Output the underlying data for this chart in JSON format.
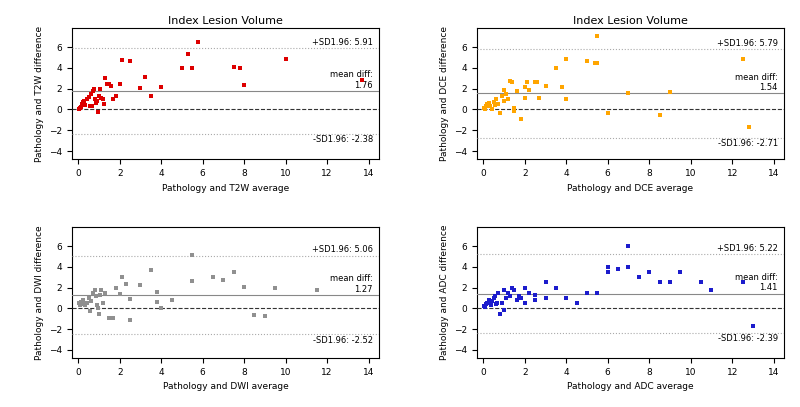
{
  "title": "Index Lesion Volume",
  "plots": [
    {
      "color": "#dd0000",
      "xlabel": "Pathology and T2W average",
      "ylabel": "Pathology and T2W difference",
      "mean": 1.76,
      "upper": 5.91,
      "lower": -2.38,
      "x": [
        0.05,
        0.1,
        0.15,
        0.2,
        0.25,
        0.3,
        0.35,
        0.4,
        0.5,
        0.55,
        0.6,
        0.65,
        0.7,
        0.75,
        0.8,
        0.85,
        0.9,
        0.95,
        1.0,
        1.05,
        1.1,
        1.2,
        1.25,
        1.3,
        1.4,
        1.5,
        1.6,
        1.7,
        1.8,
        2.0,
        2.1,
        2.5,
        3.0,
        3.2,
        3.5,
        4.0,
        5.0,
        5.3,
        5.5,
        5.8,
        7.5,
        7.8,
        8.0,
        10.0,
        13.7
      ],
      "y": [
        0.05,
        0.1,
        0.2,
        0.5,
        0.7,
        0.8,
        0.4,
        1.0,
        1.2,
        0.3,
        1.5,
        0.3,
        1.8,
        2.0,
        1.0,
        0.6,
        0.8,
        -0.2,
        1.3,
        2.0,
        1.1,
        1.0,
        0.5,
        3.0,
        2.5,
        2.5,
        2.3,
        1.0,
        1.3,
        2.5,
        4.8,
        4.7,
        2.1,
        3.1,
        1.3,
        2.2,
        4.0,
        5.3,
        4.0,
        6.5,
        4.1,
        4.0,
        2.35,
        4.85,
        2.8
      ]
    },
    {
      "color": "#ffa500",
      "xlabel": "Pathology and DCE average",
      "ylabel": "Pathology and DCE difference",
      "mean": 1.54,
      "upper": 5.79,
      "lower": -2.71,
      "x": [
        0.05,
        0.1,
        0.15,
        0.2,
        0.25,
        0.3,
        0.4,
        0.5,
        0.55,
        0.6,
        0.7,
        0.8,
        0.9,
        1.0,
        1.0,
        1.1,
        1.2,
        1.3,
        1.4,
        1.5,
        1.5,
        1.6,
        1.8,
        2.0,
        2.0,
        2.1,
        2.2,
        2.5,
        2.6,
        2.7,
        3.0,
        3.5,
        3.8,
        4.0,
        4.0,
        5.0,
        5.4,
        5.5,
        5.5,
        6.0,
        7.0,
        7.0,
        8.5,
        9.0,
        12.5,
        12.8
      ],
      "y": [
        0.1,
        0.05,
        0.3,
        0.5,
        0.6,
        0.3,
        0.0,
        0.7,
        0.4,
        1.0,
        0.5,
        -0.3,
        1.3,
        1.9,
        0.8,
        1.5,
        1.0,
        2.7,
        2.6,
        0.15,
        -0.1,
        1.8,
        -0.9,
        1.1,
        2.2,
        2.6,
        1.9,
        2.6,
        2.6,
        1.1,
        2.3,
        4.0,
        2.2,
        1.0,
        4.9,
        4.7,
        4.5,
        7.1,
        4.5,
        -0.3,
        1.6,
        1.6,
        -0.5,
        1.65,
        4.9,
        -1.7
      ]
    },
    {
      "color": "#909090",
      "xlabel": "Pathology and DWI average",
      "ylabel": "Pathology and DWI difference",
      "mean": 1.27,
      "upper": 5.06,
      "lower": -2.52,
      "x": [
        0.05,
        0.1,
        0.15,
        0.2,
        0.25,
        0.3,
        0.35,
        0.4,
        0.5,
        0.55,
        0.6,
        0.7,
        0.8,
        0.85,
        0.9,
        0.95,
        1.0,
        1.05,
        1.1,
        1.2,
        1.3,
        1.5,
        1.7,
        1.8,
        2.0,
        2.1,
        2.3,
        2.5,
        2.5,
        3.0,
        3.5,
        3.8,
        3.8,
        4.0,
        4.5,
        5.5,
        5.5,
        6.5,
        7.0,
        7.5,
        8.0,
        8.5,
        9.0,
        9.5,
        11.5
      ],
      "y": [
        0.5,
        0.3,
        0.6,
        0.4,
        0.8,
        0.5,
        0.3,
        0.5,
        1.0,
        -0.3,
        0.7,
        1.5,
        1.8,
        1.2,
        0.3,
        0.0,
        -0.5,
        1.3,
        1.8,
        0.5,
        1.5,
        -0.9,
        -0.9,
        2.0,
        1.4,
        3.0,
        2.3,
        0.9,
        -1.1,
        2.2,
        3.7,
        1.6,
        0.6,
        0.0,
        0.8,
        5.1,
        2.6,
        3.0,
        2.7,
        3.5,
        2.1,
        -0.6,
        -0.7,
        2.0,
        1.8
      ]
    },
    {
      "color": "#1c1ccc",
      "xlabel": "Pathology and ADC average",
      "ylabel": "Pathology and ADC difference",
      "mean": 1.41,
      "upper": 5.22,
      "lower": -2.39,
      "x": [
        0.05,
        0.1,
        0.15,
        0.2,
        0.25,
        0.3,
        0.35,
        0.4,
        0.5,
        0.55,
        0.6,
        0.65,
        0.7,
        0.8,
        0.9,
        1.0,
        1.0,
        1.1,
        1.2,
        1.3,
        1.4,
        1.5,
        1.6,
        1.7,
        1.8,
        2.0,
        2.0,
        2.2,
        2.5,
        2.5,
        3.0,
        3.0,
        3.5,
        4.0,
        4.5,
        5.0,
        5.5,
        6.0,
        6.0,
        6.5,
        7.0,
        7.0,
        7.5,
        8.0,
        8.5,
        9.0,
        9.5,
        10.5,
        11.0,
        12.5,
        13.0
      ],
      "y": [
        0.2,
        0.1,
        0.4,
        0.5,
        0.8,
        0.6,
        0.3,
        0.7,
        1.0,
        1.2,
        0.4,
        0.5,
        1.5,
        -0.5,
        0.5,
        -0.2,
        1.8,
        1.0,
        1.5,
        1.2,
        2.0,
        1.8,
        0.8,
        1.2,
        1.0,
        0.5,
        2.0,
        1.5,
        0.8,
        1.3,
        2.5,
        1.0,
        2.0,
        1.0,
        0.5,
        1.5,
        1.5,
        3.5,
        4.0,
        3.8,
        6.0,
        4.0,
        3.0,
        3.5,
        2.5,
        2.5,
        3.5,
        2.5,
        1.8,
        2.5,
        -1.7
      ]
    }
  ],
  "ylim": [
    -4.8,
    7.8
  ],
  "xlim": [
    -0.3,
    14.5
  ],
  "yticks": [
    -4,
    -2,
    0,
    2,
    4,
    6
  ],
  "xticks": [
    0,
    2,
    4,
    6,
    8,
    10,
    12,
    14
  ]
}
